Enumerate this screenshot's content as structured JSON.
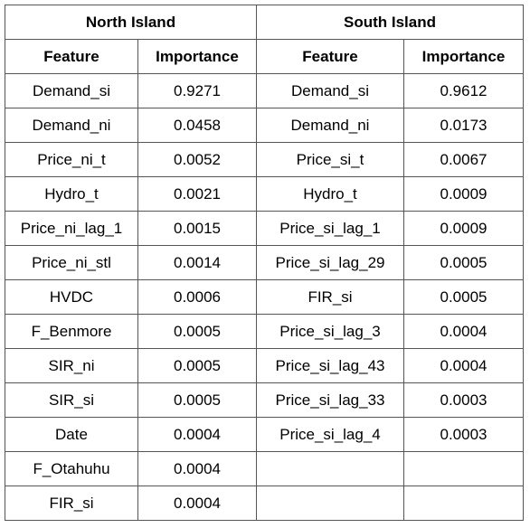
{
  "table": {
    "groups": [
      "North Island",
      "South Island"
    ],
    "columns": [
      "Feature",
      "Importance",
      "Feature",
      "Importance"
    ],
    "rows": [
      [
        "Demand_si",
        "0.9271",
        "Demand_si",
        "0.9612"
      ],
      [
        "Demand_ni",
        "0.0458",
        "Demand_ni",
        "0.0173"
      ],
      [
        "Price_ni_t",
        "0.0052",
        "Price_si_t",
        "0.0067"
      ],
      [
        "Hydro_t",
        "0.0021",
        "Hydro_t",
        "0.0009"
      ],
      [
        "Price_ni_lag_1",
        "0.0015",
        "Price_si_lag_1",
        "0.0009"
      ],
      [
        "Price_ni_stl",
        "0.0014",
        "Price_si_lag_29",
        "0.0005"
      ],
      [
        "HVDC",
        "0.0006",
        "FIR_si",
        "0.0005"
      ],
      [
        "F_Benmore",
        "0.0005",
        "Price_si_lag_3",
        "0.0004"
      ],
      [
        "SIR_ni",
        "0.0005",
        "Price_si_lag_43",
        "0.0004"
      ],
      [
        "SIR_si",
        "0.0005",
        "Price_si_lag_33",
        "0.0003"
      ],
      [
        "Date",
        "0.0004",
        "Price_si_lag_4",
        "0.0003"
      ],
      [
        "F_Otahuhu",
        "0.0004",
        "",
        ""
      ],
      [
        "FIR_si",
        "0.0004",
        "",
        ""
      ]
    ]
  }
}
